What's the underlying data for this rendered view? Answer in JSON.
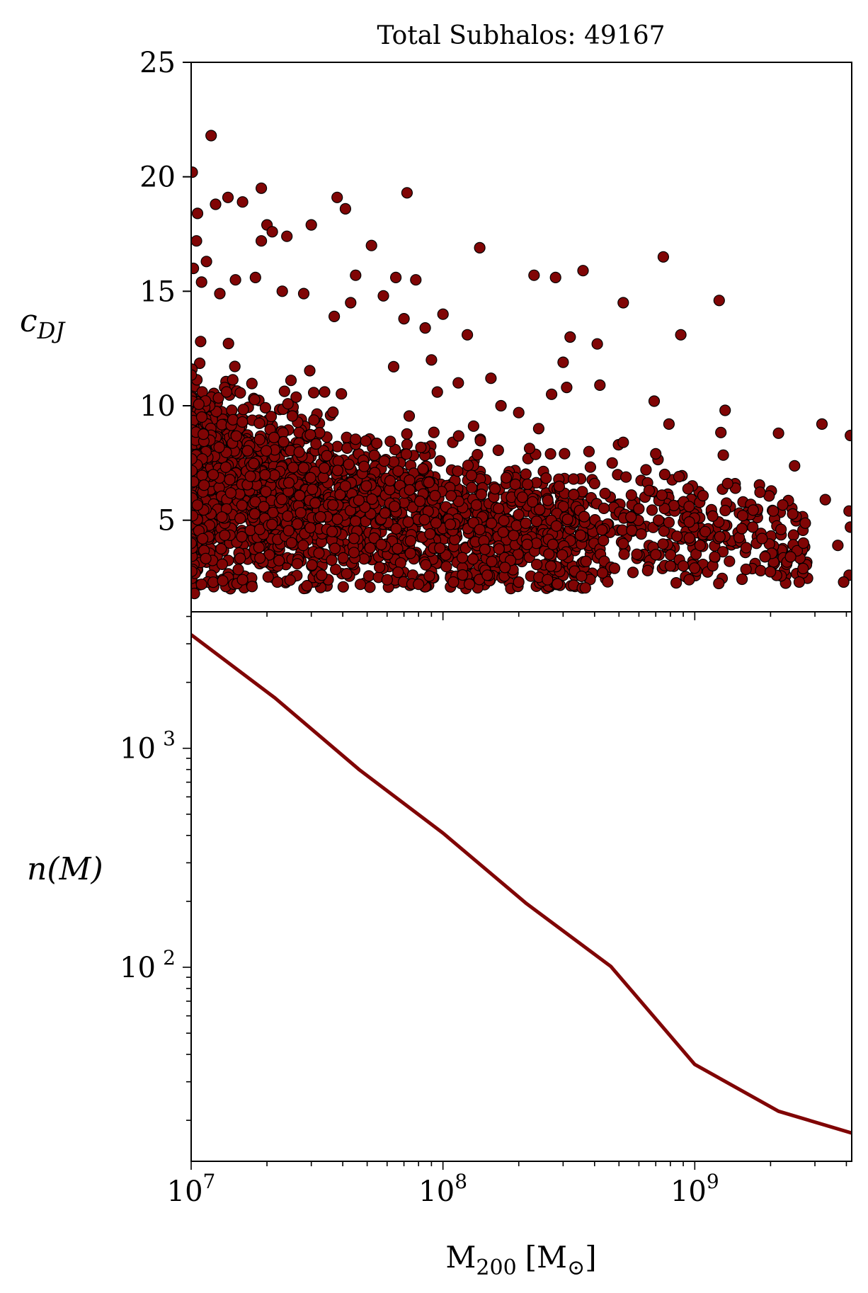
{
  "colors": {
    "marker": "#800505",
    "line": "#800505",
    "edge": "#000000"
  },
  "chart_data": [
    {
      "type": "scatter",
      "title": "Total Subhalos: 49167",
      "ylabel_main": "c",
      "ylabel_sub": "DJ",
      "xscale": "log",
      "xlim": [
        10000000,
        4200000000
      ],
      "ylim": [
        1.0,
        25
      ],
      "yticks": [
        5,
        10,
        15,
        20,
        25
      ],
      "ytick_labels": [
        "5",
        "10",
        "15",
        "20",
        "25"
      ],
      "points_note": "dense cloud of 49167 subhalos; outliers listed, bulk approximated",
      "outlier_points": [
        [
          12000000,
          21.8
        ],
        [
          10100000,
          20.2
        ],
        [
          72000000,
          19.3
        ],
        [
          38000000,
          19.1
        ],
        [
          19000000,
          19.5
        ],
        [
          14000000,
          19.1
        ],
        [
          12500000,
          18.8
        ],
        [
          16000000,
          18.9
        ],
        [
          41000000,
          18.6
        ],
        [
          30000000,
          17.9
        ],
        [
          20000000,
          17.9
        ],
        [
          21000000,
          17.6
        ],
        [
          24000000,
          17.4
        ],
        [
          19000000,
          17.2
        ],
        [
          52000000,
          17.0
        ],
        [
          140000000,
          16.9
        ],
        [
          750000000,
          16.5
        ],
        [
          360000000,
          15.9
        ],
        [
          280000000,
          15.6
        ],
        [
          230000000,
          15.7
        ],
        [
          65000000,
          15.6
        ],
        [
          78000000,
          15.5
        ],
        [
          45000000,
          15.7
        ],
        [
          100000000,
          14.0
        ],
        [
          520000000,
          14.5
        ],
        [
          1250000000,
          14.6
        ],
        [
          320000000,
          13.0
        ],
        [
          410000000,
          12.7
        ],
        [
          880000000,
          13.1
        ],
        [
          125000000,
          13.1
        ],
        [
          300000000,
          11.9
        ],
        [
          310000000,
          10.8
        ],
        [
          420000000,
          10.9
        ],
        [
          690000000,
          10.2
        ],
        [
          270000000,
          10.5
        ],
        [
          790000000,
          9.2
        ],
        [
          1320000000,
          9.8
        ],
        [
          2150000000,
          8.8
        ],
        [
          3200000000,
          9.2
        ],
        [
          4150000000,
          8.7
        ],
        [
          3300000000,
          5.9
        ],
        [
          4100000000,
          5.4
        ],
        [
          4150000000,
          4.7
        ],
        [
          4100000000,
          2.6
        ],
        [
          3900000000,
          2.3
        ],
        [
          3700000000,
          3.9
        ],
        [
          2600000000,
          2.3
        ],
        [
          2700000000,
          4.0
        ],
        [
          2400000000,
          3.4
        ],
        [
          2200000000,
          4.6
        ],
        [
          2050000000,
          5.4
        ],
        [
          1900000000,
          3.4
        ],
        [
          1600000000,
          3.8
        ],
        [
          1450000000,
          6.4
        ],
        [
          1350000000,
          6.6
        ],
        [
          1200000000,
          3.4
        ],
        [
          950000000,
          2.4
        ],
        [
          900000000,
          3.0
        ],
        [
          1100000000,
          4.5
        ],
        [
          1050000000,
          3.9
        ],
        [
          850000000,
          4.3
        ],
        [
          800000000,
          3.0
        ],
        [
          700000000,
          3.5
        ],
        [
          650000000,
          2.8
        ],
        [
          600000000,
          5.5
        ],
        [
          560000000,
          6.1
        ],
        [
          480000000,
          2.9
        ],
        [
          430000000,
          2.7
        ],
        [
          370000000,
          3.2
        ],
        [
          330000000,
          6.8
        ],
        [
          260000000,
          2.4
        ],
        [
          200000000,
          2.3
        ],
        [
          150000000,
          2.6
        ],
        [
          110000000,
          2.3
        ],
        [
          80000000,
          2.2
        ],
        [
          60000000,
          2.4
        ],
        [
          47000000,
          2.2
        ],
        [
          33000000,
          2.6
        ],
        [
          22000000,
          2.3
        ],
        [
          16000000,
          2.4
        ],
        [
          10300000,
          1.8
        ],
        [
          11000000,
          2.2
        ],
        [
          1700000000,
          4.7
        ],
        [
          1850000000,
          4.2
        ],
        [
          1550000000,
          5.2
        ],
        [
          950000000,
          5.6
        ],
        [
          760000000,
          7.0
        ],
        [
          700000000,
          7.9
        ],
        [
          640000000,
          7.2
        ],
        [
          520000000,
          8.4
        ],
        [
          470000000,
          7.5
        ],
        [
          400000000,
          6.6
        ],
        [
          380000000,
          8.0
        ],
        [
          240000000,
          9.0
        ],
        [
          200000000,
          9.7
        ],
        [
          170000000,
          10.0
        ],
        [
          155000000,
          11.2
        ],
        [
          115000000,
          11.0
        ],
        [
          95000000,
          10.6
        ],
        [
          90000000,
          12.0
        ],
        [
          85000000,
          13.4
        ],
        [
          70000000,
          13.8
        ],
        [
          58000000,
          14.8
        ],
        [
          43000000,
          14.5
        ],
        [
          37000000,
          13.9
        ],
        [
          28000000,
          14.9
        ],
        [
          23000000,
          15.0
        ],
        [
          18000000,
          15.6
        ],
        [
          15000000,
          15.5
        ],
        [
          13000000,
          14.9
        ],
        [
          11500000,
          16.3
        ],
        [
          10500000,
          17.2
        ],
        [
          10600000,
          18.4
        ],
        [
          10200000,
          16.0
        ],
        [
          11000000,
          15.4
        ]
      ]
    },
    {
      "type": "line",
      "ylabel": "n(M)",
      "xlabel_main": "M",
      "xlabel_sub": "200",
      "xlabel_unit_open": "[M",
      "xlabel_unit_sub": "⊙",
      "xlabel_unit_close": "]",
      "xscale": "log",
      "yscale": "log",
      "xlim": [
        10000000,
        4200000000
      ],
      "ylim": [
        13,
        4200
      ],
      "x": [
        10000000,
        21500000,
        46400000,
        100000000,
        215000000,
        464000000,
        1000000000,
        2150000000,
        4200000000
      ],
      "y": [
        3300,
        1700,
        800,
        410,
        195,
        101,
        36,
        22,
        17.5
      ],
      "series": [
        {
          "name": "",
          "x_ref": "x",
          "y_ref": "y"
        }
      ],
      "yticks_major": [
        100,
        1000
      ],
      "ytick_labels": [
        "10",
        "10"
      ],
      "ytick_exponents": [
        "2",
        "3"
      ],
      "xticks_major": [
        10000000,
        100000000,
        1000000000
      ],
      "xtick_labels": [
        "10",
        "10",
        "10"
      ],
      "xtick_exponents": [
        "7",
        "8",
        "9"
      ]
    }
  ]
}
